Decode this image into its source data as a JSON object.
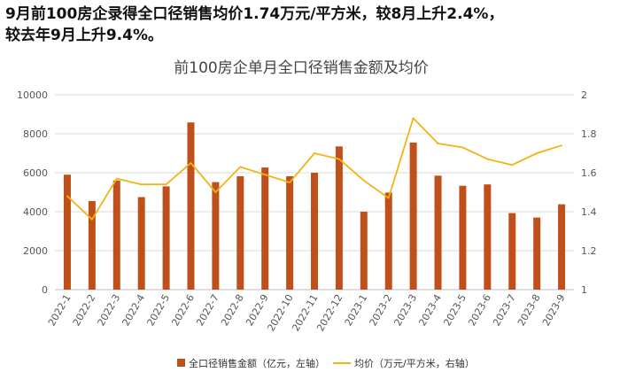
{
  "headline": {
    "line1": "9月前100房企录得全口径销售均价1.74万元/平方米，较8月上升2.4%，",
    "line2": "较去年9月上升9.4%。"
  },
  "colors": {
    "bar": "#c0501a",
    "line": "#f2b315",
    "grid": "#d9d9d9",
    "axis": "#bfbfbf"
  },
  "chart_data": {
    "type": "bar",
    "title": "前100房企单月全口径销售金额及均价",
    "categories": [
      "2022-1",
      "2022-2",
      "2022-3",
      "2022-4",
      "2022-5",
      "2022-6",
      "2022-7",
      "2022-8",
      "2022-9",
      "2022-10",
      "2022-11",
      "2022-12",
      "2023-1",
      "2023-2",
      "2023-3",
      "2023-4",
      "2023-5",
      "2023-6",
      "2023-7",
      "2023-8",
      "2023-9"
    ],
    "series": [
      {
        "name": "全口径销售金额（亿元，左轴）",
        "type": "bar",
        "axis": "left",
        "values": [
          5900,
          4550,
          5600,
          4750,
          5300,
          8580,
          5520,
          5820,
          6270,
          5820,
          6000,
          7350,
          4000,
          4980,
          7550,
          5850,
          5330,
          5400,
          3930,
          3700,
          4380
        ]
      },
      {
        "name": "均价（万元/平方米，右轴）",
        "type": "line",
        "axis": "right",
        "values": [
          1.48,
          1.36,
          1.57,
          1.54,
          1.54,
          1.65,
          1.5,
          1.63,
          1.59,
          1.55,
          1.7,
          1.67,
          1.56,
          1.47,
          1.88,
          1.75,
          1.73,
          1.67,
          1.64,
          1.7,
          1.74
        ]
      }
    ],
    "y_left": {
      "min": 0,
      "max": 10000,
      "ticks": [
        0,
        2000,
        4000,
        6000,
        8000,
        10000
      ]
    },
    "y_right": {
      "min": 1,
      "max": 2,
      "ticks": [
        "1",
        "1.2",
        "1.4",
        "1.6",
        "1.8",
        "2"
      ]
    },
    "grid": true,
    "legend": "bottom"
  }
}
